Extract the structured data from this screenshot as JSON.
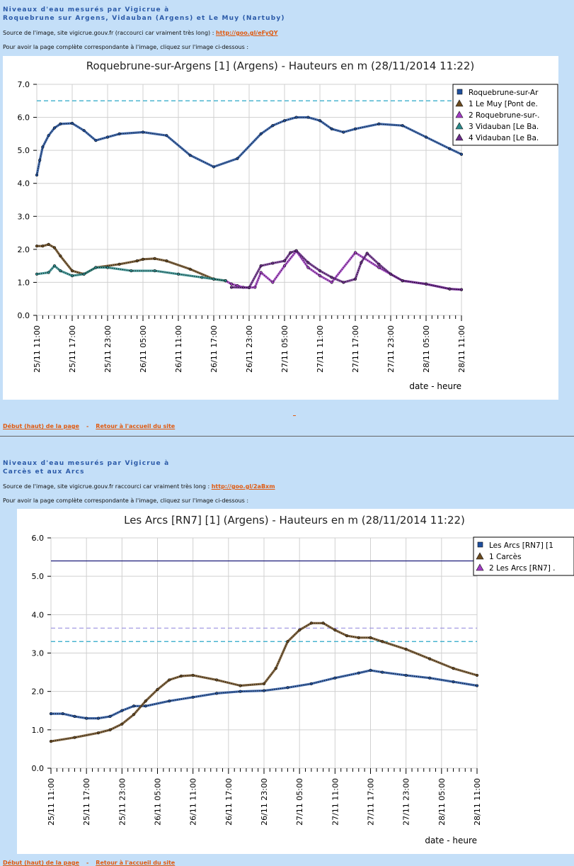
{
  "section1": {
    "title_line1": "Niveaux d'eau mesurés par Vigicrue à",
    "title_line2": "Roquebrune sur Argens, Vidauban (Argens) et Le Muy (Nartuby)",
    "source_text": "Source de l'image, site vigicrue.gouv.fr (raccourci car vraiment très long) : ",
    "source_link": "http://goo.gl/eFyQY",
    "instruction": "Pour avoir la page complète correspondante à l'image, cliquez sur l'image ci-dessous :"
  },
  "section2": {
    "title_line1": "Niveaux d'eau mesurés par Vigicrue à",
    "title_line2": "Carcès et aux Arcs",
    "source_text": "Source de l'image, site vigicrue.gouv.fr raccourci car vraiment très long : ",
    "source_link": "http://goo.gl/2aBxm",
    "instruction": "Pour avoir la page complète correspondante à l'image, cliquez sur l'image ci-dessous :"
  },
  "nav": {
    "top_link": "Début (haut) de la page",
    "separator": "-",
    "home_link": "Retour à l'accueil du site"
  },
  "colors": {
    "page_bg": "#c4dff8",
    "title_blue": "#2b5aa8",
    "link_orange": "#e05a10",
    "threshold_cyan": "#2aa8c8",
    "threshold_lavender": "#9a90e0",
    "threshold_navy": "#1c1c7a"
  },
  "chart_data": [
    {
      "type": "line",
      "title": "Roquebrune-sur-Argens [1] (Argens) - Hauteurs en m (28/11/2014 11:22)",
      "xlabel": "date - heure",
      "ylabel": "",
      "ylim": [
        0,
        7
      ],
      "yticks": [
        "0.0",
        "1.0",
        "2.0",
        "3.0",
        "4.0",
        "5.0",
        "6.0",
        "7.0"
      ],
      "x_tick_labels": [
        "25/11 11:00",
        "25/11 17:00",
        "25/11 23:00",
        "26/11 05:00",
        "26/11 11:00",
        "26/11 17:00",
        "26/11 23:00",
        "27/11 05:00",
        "27/11 11:00",
        "27/11 17:00",
        "27/11 23:00",
        "28/11 05:00",
        "28/11 11:00"
      ],
      "grid": true,
      "legend_position": "top-right",
      "thresholds": [
        {
          "value": 6.5,
          "color": "#2aa8c8",
          "style": "dashed"
        }
      ],
      "series": [
        {
          "name": "Roquebrune-sur-Ar",
          "color": "#1f4f9e",
          "x": [
            0,
            0.5,
            1,
            2,
            3,
            4,
            6,
            8,
            10,
            12,
            14,
            18,
            22,
            26,
            30,
            34,
            38,
            40,
            42,
            44,
            46,
            48,
            50,
            52,
            54,
            58,
            62,
            66,
            70,
            72
          ],
          "y": [
            4.25,
            4.7,
            5.1,
            5.45,
            5.68,
            5.8,
            5.82,
            5.6,
            5.3,
            5.4,
            5.5,
            5.55,
            5.45,
            4.85,
            4.5,
            4.75,
            5.5,
            5.75,
            5.9,
            6.0,
            6.0,
            5.9,
            5.65,
            5.55,
            5.65,
            5.8,
            5.75,
            5.4,
            5.05,
            4.88
          ]
        },
        {
          "name": "1 Le Muy [Pont de.",
          "color": "#6b4a1e",
          "x": [
            0,
            1,
            2,
            3,
            4,
            6,
            8,
            10,
            14,
            17,
            18,
            20,
            22,
            26,
            30,
            32
          ],
          "y": [
            2.1,
            2.1,
            2.15,
            2.05,
            1.8,
            1.35,
            1.25,
            1.45,
            1.55,
            1.65,
            1.7,
            1.72,
            1.65,
            1.4,
            1.1,
            1.05
          ]
        },
        {
          "name": "2 Roquebrune-sur-.",
          "color": "#a23cc4",
          "x": [
            32,
            33,
            34,
            35,
            36,
            37,
            38,
            40,
            42,
            44,
            46,
            48,
            50,
            54,
            58,
            62,
            66,
            70,
            72
          ],
          "y": [
            1.05,
            0.95,
            0.9,
            0.85,
            0.84,
            0.85,
            1.3,
            1.0,
            1.5,
            1.95,
            1.45,
            1.2,
            1.0,
            1.9,
            1.45,
            1.05,
            0.95,
            0.8,
            0.78
          ]
        },
        {
          "name": "3 Vidauban [Le Ba.",
          "color": "#2a8a8a",
          "x": [
            0,
            2,
            3,
            4,
            6,
            8,
            10,
            12,
            16,
            20,
            24,
            28,
            30,
            32
          ],
          "y": [
            1.25,
            1.3,
            1.5,
            1.35,
            1.2,
            1.25,
            1.45,
            1.45,
            1.35,
            1.35,
            1.25,
            1.15,
            1.1,
            1.05
          ]
        },
        {
          "name": "4 Vidauban [Le Ba.",
          "color": "#6a2a8a",
          "x": [
            33,
            36,
            38,
            40,
            42,
            43,
            44,
            46,
            48,
            50,
            52,
            54,
            55,
            56,
            58,
            60,
            62,
            66,
            70,
            72
          ],
          "y": [
            0.85,
            0.84,
            1.5,
            1.58,
            1.65,
            1.9,
            1.96,
            1.6,
            1.35,
            1.15,
            1.0,
            1.1,
            1.6,
            1.88,
            1.55,
            1.25,
            1.05,
            0.95,
            0.8,
            0.78
          ]
        }
      ]
    },
    {
      "type": "line",
      "title": "Les Arcs [RN7] [1] (Argens) - Hauteurs en m (28/11/2014 11:22)",
      "xlabel": "date - heure",
      "ylabel": "",
      "ylim": [
        0,
        6
      ],
      "yticks": [
        "0.0",
        "1.0",
        "2.0",
        "3.0",
        "4.0",
        "5.0",
        "6.0"
      ],
      "x_tick_labels": [
        "25/11 11:00",
        "25/11 17:00",
        "25/11 23:00",
        "26/11 05:00",
        "26/11 11:00",
        "26/11 17:00",
        "26/11 23:00",
        "27/11 05:00",
        "27/11 11:00",
        "27/11 17:00",
        "27/11 23:00",
        "28/11 05:00",
        "28/11 11:00"
      ],
      "grid": true,
      "legend_position": "top-right",
      "thresholds": [
        {
          "value": 5.4,
          "color": "#1c1c7a",
          "style": "solid"
        },
        {
          "value": 3.65,
          "color": "#9a90e0",
          "style": "dashed"
        },
        {
          "value": 3.3,
          "color": "#2aa8c8",
          "style": "dashed"
        }
      ],
      "series": [
        {
          "name": "Les Arcs [RN7] [1",
          "color": "#1f4f9e",
          "x": [
            0,
            2,
            4,
            6,
            8,
            10,
            12,
            14,
            16,
            20,
            24,
            28,
            32,
            36,
            40,
            44,
            48,
            52,
            54,
            56,
            60,
            64,
            68,
            72
          ],
          "y": [
            1.42,
            1.42,
            1.35,
            1.3,
            1.3,
            1.35,
            1.5,
            1.62,
            1.62,
            1.75,
            1.85,
            1.95,
            2.0,
            2.02,
            2.1,
            2.2,
            2.35,
            2.48,
            2.55,
            2.5,
            2.42,
            2.35,
            2.25,
            2.15
          ]
        },
        {
          "name": "1 Carcès",
          "color": "#6b4a1e",
          "x": [
            0,
            4,
            8,
            10,
            12,
            14,
            16,
            18,
            20,
            22,
            24,
            28,
            32,
            36,
            38,
            40,
            42,
            44,
            46,
            48,
            50,
            52,
            54,
            56,
            60,
            64,
            68,
            72
          ],
          "y": [
            0.7,
            0.8,
            0.92,
            1.0,
            1.15,
            1.4,
            1.75,
            2.05,
            2.3,
            2.4,
            2.42,
            2.3,
            2.15,
            2.2,
            2.6,
            3.3,
            3.6,
            3.78,
            3.78,
            3.6,
            3.45,
            3.4,
            3.4,
            3.3,
            3.1,
            2.85,
            2.6,
            2.42
          ]
        },
        {
          "name": "2 Les Arcs [RN7] .",
          "color": "#a23cc4",
          "x": [],
          "y": []
        }
      ]
    }
  ]
}
